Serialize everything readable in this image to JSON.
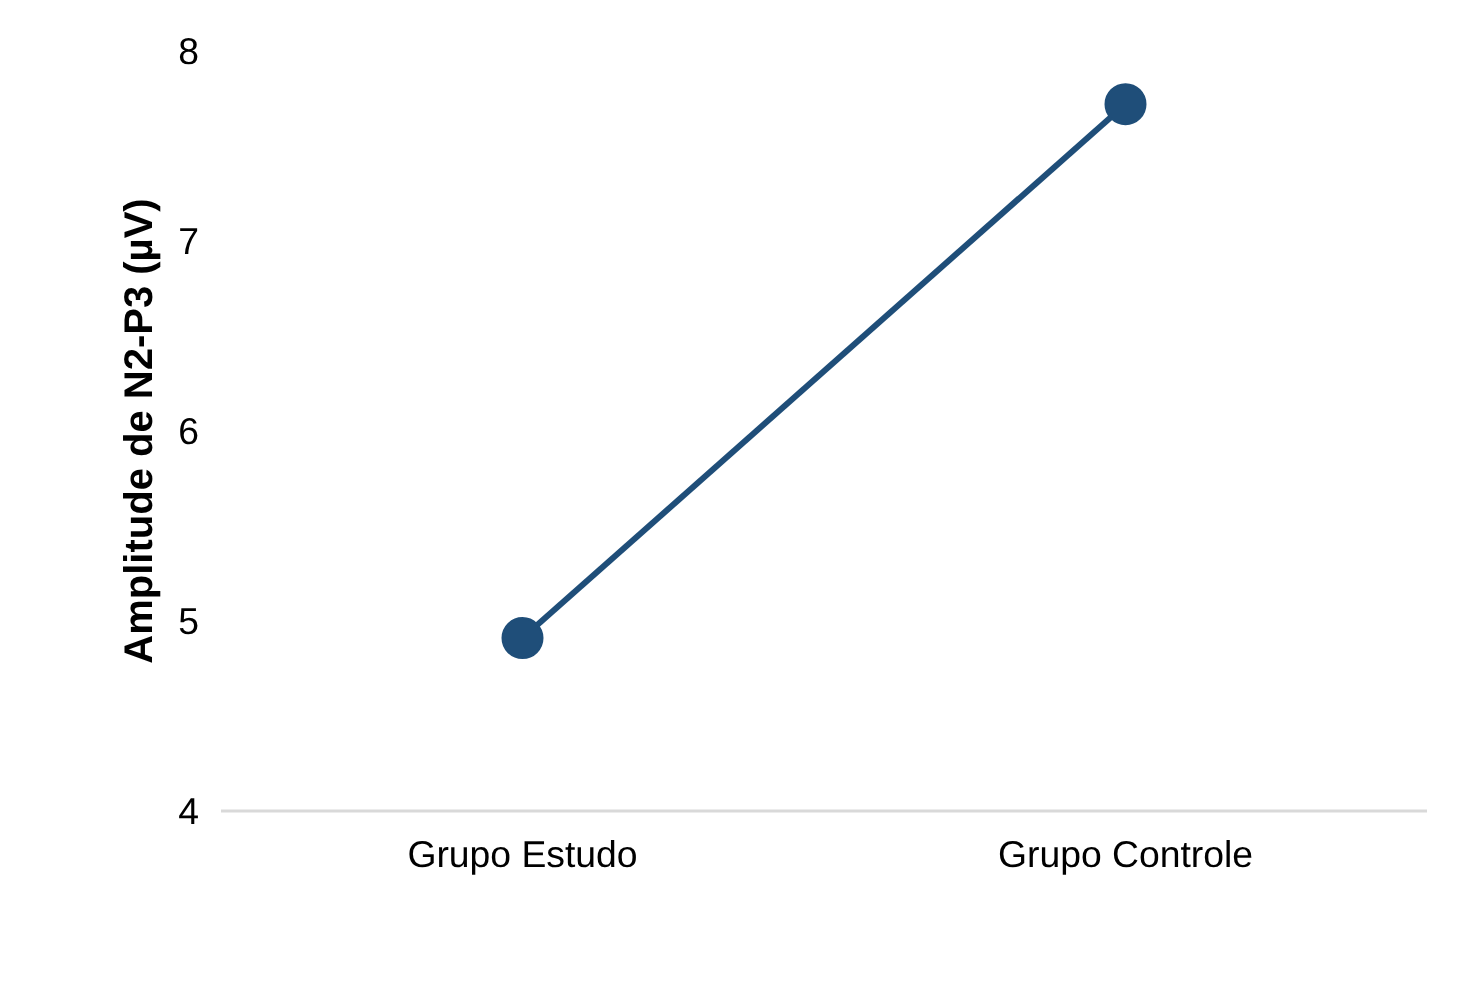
{
  "chart_data": {
    "type": "line",
    "ylabel": "Amplitude de N2-P3 (µV)",
    "categories": [
      "Grupo Estudo",
      "Grupo Controle"
    ],
    "series": [
      {
        "color": "#1f4e79",
        "values": [
          4.91,
          7.72
        ]
      }
    ],
    "ylim": [
      4,
      8
    ],
    "yticks": [
      4,
      5,
      6,
      7,
      8
    ],
    "grid": false,
    "marker": "circle",
    "line_style": "solid"
  }
}
